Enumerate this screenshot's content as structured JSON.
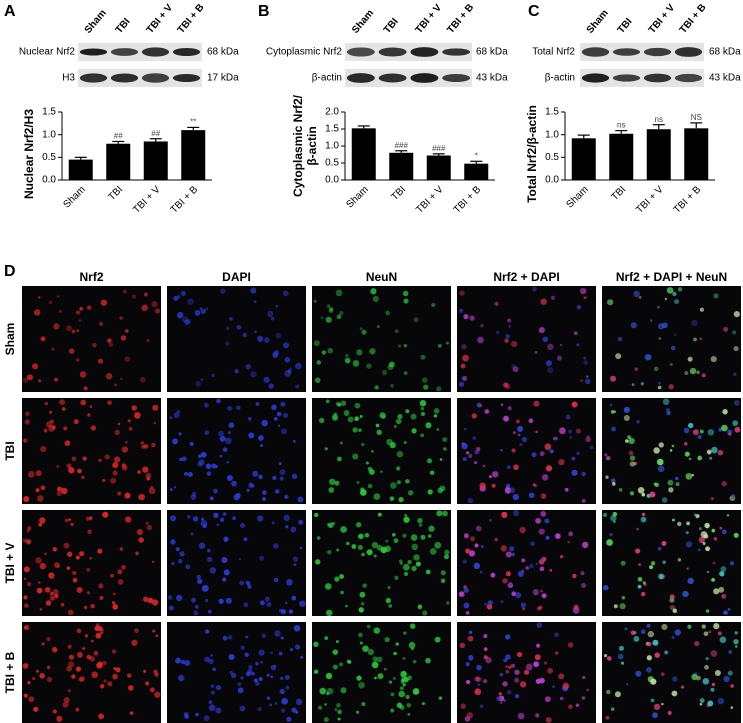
{
  "panel_labels": [
    "A",
    "B",
    "C",
    "D"
  ],
  "blots": [
    {
      "lanes": [
        "Sham",
        "TBI",
        "TBI + V",
        "TBI + B"
      ],
      "rows": [
        {
          "label": "Nuclear Nrf2",
          "size": "68 kDa"
        },
        {
          "label": "H3",
          "size": "17 kDa"
        }
      ]
    },
    {
      "lanes": [
        "Sham",
        "TBI",
        "TBI + V",
        "TBI + B"
      ],
      "rows": [
        {
          "label": "Cytoplasmic Nrf2",
          "size": "68 kDa"
        },
        {
          "label": "β-actin",
          "size": "43 kDa"
        }
      ]
    },
    {
      "lanes": [
        "Sham",
        "TBI",
        "TBI + V",
        "TBI + B"
      ],
      "rows": [
        {
          "label": "Total Nrf2",
          "size": "68 kDa"
        },
        {
          "label": "β-actin",
          "size": "43 kDa"
        }
      ]
    }
  ],
  "chart_data": [
    {
      "type": "bar",
      "y_label": "Nuclear Nrf2/H3",
      "categories": [
        "Sham",
        "TBI",
        "TBI + V",
        "TBI + B"
      ],
      "values": [
        0.45,
        0.8,
        0.85,
        1.1
      ],
      "errors": [
        0.05,
        0.05,
        0.06,
        0.06
      ],
      "significance": [
        null,
        "##",
        "##",
        "**"
      ],
      "color": "#000000",
      "ylim": [
        0,
        1.5
      ],
      "yticks": [
        {
          "value": 0,
          "label": "0.0"
        },
        0.5,
        {
          "value": 1,
          "label": "1.0"
        },
        1.5
      ],
      "grid": false
    },
    {
      "type": "bar",
      "y_label": [
        "Cytoplasmic Nrf2/",
        "β-actin"
      ],
      "categories": [
        "Sham",
        "TBI",
        "TBI + V",
        "TBI + B"
      ],
      "values": [
        1.52,
        0.8,
        0.72,
        0.48
      ],
      "errors": [
        0.07,
        0.06,
        0.05,
        0.07
      ],
      "significance": [
        null,
        "###",
        "###",
        "*"
      ],
      "color": "#000000",
      "ylim": [
        0,
        2
      ],
      "yticks": [
        {
          "value": 0,
          "label": "0.0"
        },
        0.5,
        {
          "value": 1,
          "label": "1.0"
        },
        1.5,
        {
          "value": 2,
          "label": "2.0"
        }
      ],
      "grid": false
    },
    {
      "type": "bar",
      "y_label": "Total Nrf2/β-actin",
      "categories": [
        "Sham",
        "TBI",
        "TBI + V",
        "TBI + B"
      ],
      "values": [
        0.92,
        1.02,
        1.12,
        1.14
      ],
      "errors": [
        0.07,
        0.07,
        0.1,
        0.12
      ],
      "significance": [
        null,
        "ns",
        "ns",
        "NS"
      ],
      "color": "#000000",
      "ylim": [
        0,
        1.5
      ],
      "yticks": [
        {
          "value": 0,
          "label": "0.0"
        },
        0.5,
        {
          "value": 1,
          "label": "1.0"
        },
        1.5
      ],
      "grid": false
    }
  ],
  "immunofluorescence": {
    "columns": [
      "Nrf2",
      "DAPI",
      "NeuN",
      "Nrf2 + DAPI",
      "Nrf2 + DAPI + NeuN"
    ],
    "rows": [
      "Sham",
      "TBI",
      "TBI + V",
      "TBI + B"
    ]
  }
}
